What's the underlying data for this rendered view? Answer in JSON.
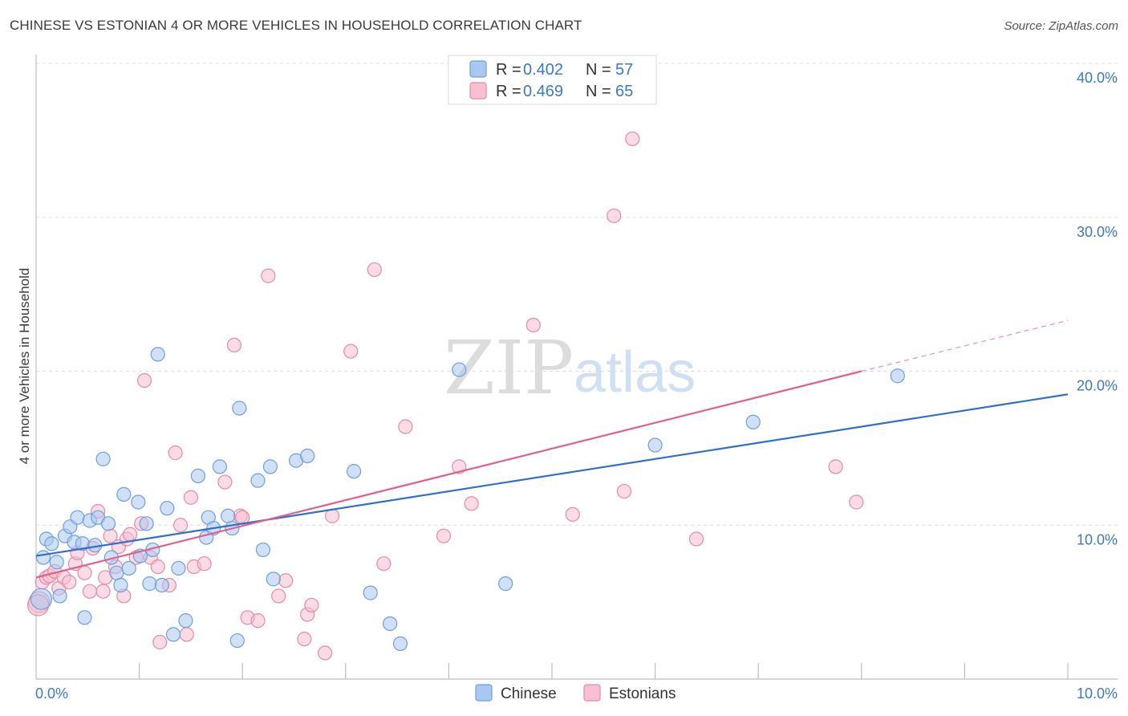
{
  "title": "CHINESE VS ESTONIAN 4 OR MORE VEHICLES IN HOUSEHOLD CORRELATION CHART",
  "source": "Source: ZipAtlas.com",
  "watermark": {
    "zip": "ZIP",
    "atlas": "atlas"
  },
  "legend": {
    "r_label": "R =",
    "n_label": "N =",
    "rows": [
      {
        "r": "0.402",
        "n": "57"
      },
      {
        "r": "0.469",
        "n": "65"
      }
    ]
  },
  "colors": {
    "chinese_fill": "#a9c8f0",
    "chinese_stroke": "#6f9fdc",
    "chinese_line": "#2f6fcf",
    "estonian_fill": "#f7bfd0",
    "estonian_stroke": "#e48aa8",
    "estonian_line": "#e0608e",
    "tick_text": "#3b78c9",
    "grid": "#dddddd"
  },
  "chart_data": {
    "type": "scatter",
    "title": "CHINESE VS ESTONIAN 4 OR MORE VEHICLES IN HOUSEHOLD CORRELATION CHART",
    "xlabel": "",
    "ylabel": "4 or more Vehicles in Household",
    "xlim": [
      0,
      10
    ],
    "ylim": [
      0,
      40
    ],
    "x_tick_labels": [
      "0.0%",
      "10.0%"
    ],
    "y_tick_labels": [
      "10.0%",
      "20.0%",
      "30.0%",
      "40.0%"
    ],
    "y_ticks": [
      10,
      20,
      30,
      40
    ],
    "grid": true,
    "legend_position": "top-center",
    "series": [
      {
        "name": "Chinese",
        "r": 0.402,
        "n": 57,
        "trend": {
          "x0": 0,
          "y0": 8.0,
          "x1": 10,
          "y1": 18.5
        },
        "points": [
          [
            0.05,
            5.2
          ],
          [
            0.07,
            7.9
          ],
          [
            0.1,
            9.1
          ],
          [
            0.15,
            8.8
          ],
          [
            0.2,
            7.6
          ],
          [
            0.23,
            5.4
          ],
          [
            0.28,
            9.3
          ],
          [
            0.33,
            9.9
          ],
          [
            0.37,
            8.9
          ],
          [
            0.4,
            10.5
          ],
          [
            0.45,
            8.8
          ],
          [
            0.47,
            4.0
          ],
          [
            0.52,
            10.3
          ],
          [
            0.57,
            8.7
          ],
          [
            0.6,
            10.5
          ],
          [
            0.65,
            14.3
          ],
          [
            0.7,
            10.1
          ],
          [
            0.73,
            7.9
          ],
          [
            0.78,
            6.9
          ],
          [
            0.82,
            6.1
          ],
          [
            0.85,
            12.0
          ],
          [
            0.9,
            7.2
          ],
          [
            0.99,
            11.5
          ],
          [
            1.01,
            8.0
          ],
          [
            1.07,
            10.1
          ],
          [
            1.1,
            6.2
          ],
          [
            1.13,
            8.4
          ],
          [
            1.18,
            21.1
          ],
          [
            1.22,
            6.1
          ],
          [
            1.27,
            11.1
          ],
          [
            1.33,
            2.9
          ],
          [
            1.38,
            7.2
          ],
          [
            1.45,
            3.8
          ],
          [
            1.57,
            13.2
          ],
          [
            1.65,
            9.2
          ],
          [
            1.67,
            10.5
          ],
          [
            1.72,
            9.8
          ],
          [
            1.78,
            13.8
          ],
          [
            1.86,
            10.6
          ],
          [
            1.9,
            9.8
          ],
          [
            1.95,
            2.5
          ],
          [
            1.97,
            17.6
          ],
          [
            2.15,
            12.9
          ],
          [
            2.2,
            8.4
          ],
          [
            2.27,
            13.8
          ],
          [
            2.3,
            6.5
          ],
          [
            2.52,
            14.2
          ],
          [
            2.63,
            14.5
          ],
          [
            3.08,
            13.5
          ],
          [
            3.24,
            5.6
          ],
          [
            3.43,
            3.6
          ],
          [
            3.53,
            2.3
          ],
          [
            4.1,
            20.1
          ],
          [
            4.55,
            6.2
          ],
          [
            6.0,
            15.2
          ],
          [
            6.95,
            16.7
          ],
          [
            8.35,
            19.7
          ]
        ]
      },
      {
        "name": "Estonians",
        "r": 0.469,
        "n": 65,
        "trend": {
          "x0": 0,
          "y0": 6.6,
          "x1": 8.0,
          "y1": 20.0
        },
        "trend_dashed": {
          "x0": 8.0,
          "y0": 20.0,
          "x1": 10.0,
          "y1": 23.3
        },
        "points": [
          [
            0.03,
            5.0
          ],
          [
            0.06,
            6.3
          ],
          [
            0.1,
            6.6
          ],
          [
            0.13,
            6.7
          ],
          [
            0.18,
            7.0
          ],
          [
            0.22,
            5.9
          ],
          [
            0.27,
            6.6
          ],
          [
            0.32,
            6.3
          ],
          [
            0.38,
            7.5
          ],
          [
            0.4,
            8.2
          ],
          [
            0.47,
            6.9
          ],
          [
            0.52,
            5.7
          ],
          [
            0.55,
            8.5
          ],
          [
            0.6,
            10.9
          ],
          [
            0.65,
            5.7
          ],
          [
            0.67,
            6.6
          ],
          [
            0.72,
            9.3
          ],
          [
            0.77,
            7.3
          ],
          [
            0.8,
            8.6
          ],
          [
            0.85,
            5.4
          ],
          [
            0.88,
            9.1
          ],
          [
            0.91,
            9.4
          ],
          [
            0.97,
            7.9
          ],
          [
            1.02,
            10.1
          ],
          [
            1.05,
            19.4
          ],
          [
            1.11,
            7.9
          ],
          [
            1.18,
            7.3
          ],
          [
            1.2,
            2.4
          ],
          [
            1.29,
            6.1
          ],
          [
            1.35,
            14.7
          ],
          [
            1.4,
            10.0
          ],
          [
            1.46,
            2.9
          ],
          [
            1.5,
            11.8
          ],
          [
            1.53,
            7.3
          ],
          [
            1.63,
            7.5
          ],
          [
            1.83,
            12.8
          ],
          [
            1.92,
            21.7
          ],
          [
            1.98,
            10.6
          ],
          [
            2.0,
            10.5
          ],
          [
            2.05,
            4.0
          ],
          [
            2.15,
            3.8
          ],
          [
            2.25,
            26.2
          ],
          [
            2.35,
            5.4
          ],
          [
            2.42,
            6.4
          ],
          [
            2.6,
            2.6
          ],
          [
            2.63,
            4.2
          ],
          [
            2.67,
            4.8
          ],
          [
            2.8,
            1.7
          ],
          [
            2.87,
            10.6
          ],
          [
            3.05,
            21.3
          ],
          [
            3.28,
            26.6
          ],
          [
            3.37,
            7.5
          ],
          [
            3.58,
            16.4
          ],
          [
            3.95,
            9.3
          ],
          [
            4.1,
            13.8
          ],
          [
            4.22,
            11.4
          ],
          [
            4.82,
            23.0
          ],
          [
            5.2,
            10.7
          ],
          [
            5.6,
            30.1
          ],
          [
            5.7,
            12.2
          ],
          [
            5.78,
            35.1
          ],
          [
            6.4,
            9.1
          ],
          [
            7.75,
            13.8
          ],
          [
            7.95,
            11.5
          ],
          [
            0.02,
            4.8
          ]
        ]
      }
    ]
  }
}
